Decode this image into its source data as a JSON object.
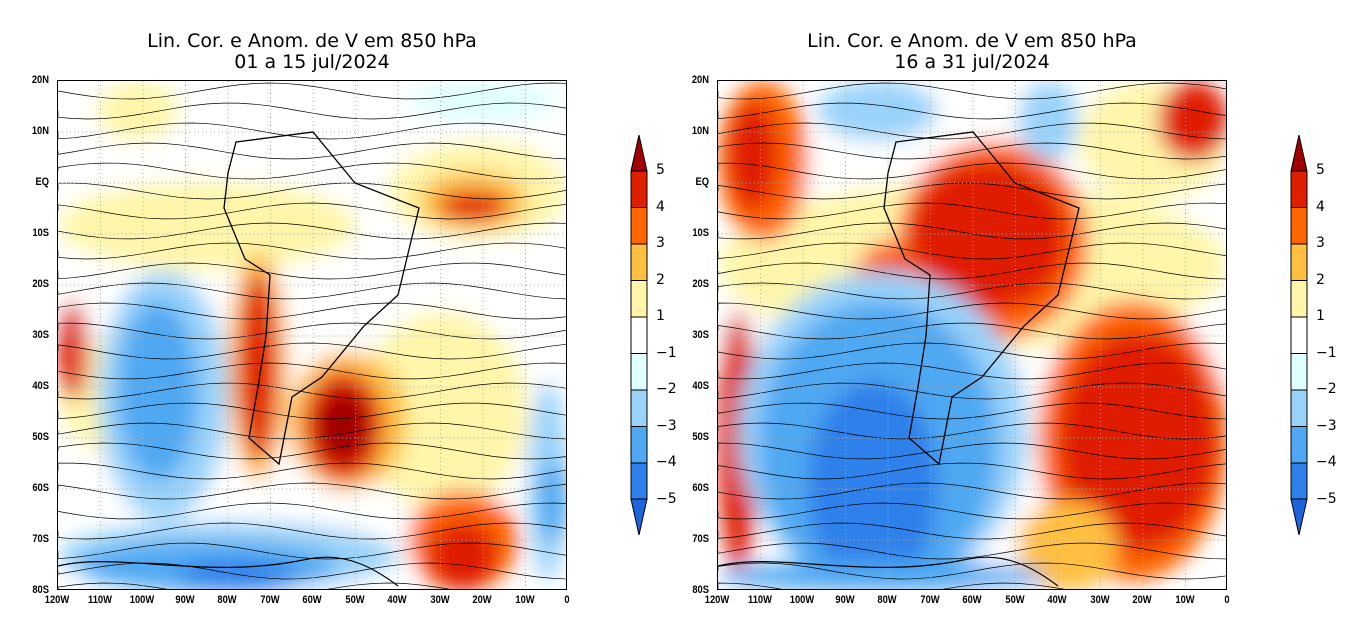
{
  "panels": [
    {
      "title_line1": "Lin. Cor. e Anom. de V em 850 hPa",
      "title_line2": "01 a 15 jul/2024"
    },
    {
      "title_line1": "Lin. Cor. e Anom. de V em 850 hPa",
      "title_line2": "16 a 31 jul/2024"
    }
  ],
  "lat_labels": [
    "20N",
    "10N",
    "EQ",
    "10S",
    "20S",
    "30S",
    "40S",
    "50S",
    "60S",
    "70S",
    "80S"
  ],
  "lon_labels": [
    "120W",
    "110W",
    "100W",
    "90W",
    "80W",
    "70W",
    "60W",
    "50W",
    "40W",
    "30W",
    "20W",
    "10W",
    "0"
  ],
  "colorbar": {
    "labels": [
      "5",
      "4",
      "3",
      "2",
      "1",
      "−1",
      "−2",
      "−3",
      "−4",
      "−5"
    ],
    "colors": [
      "#a00000",
      "#e01e00",
      "#ff6600",
      "#ffbf40",
      "#fff6aa",
      "#ffffff",
      "#e0ffff",
      "#9ad3fa",
      "#50a8f2",
      "#2f80ea",
      "#1e64dc"
    ]
  }
}
